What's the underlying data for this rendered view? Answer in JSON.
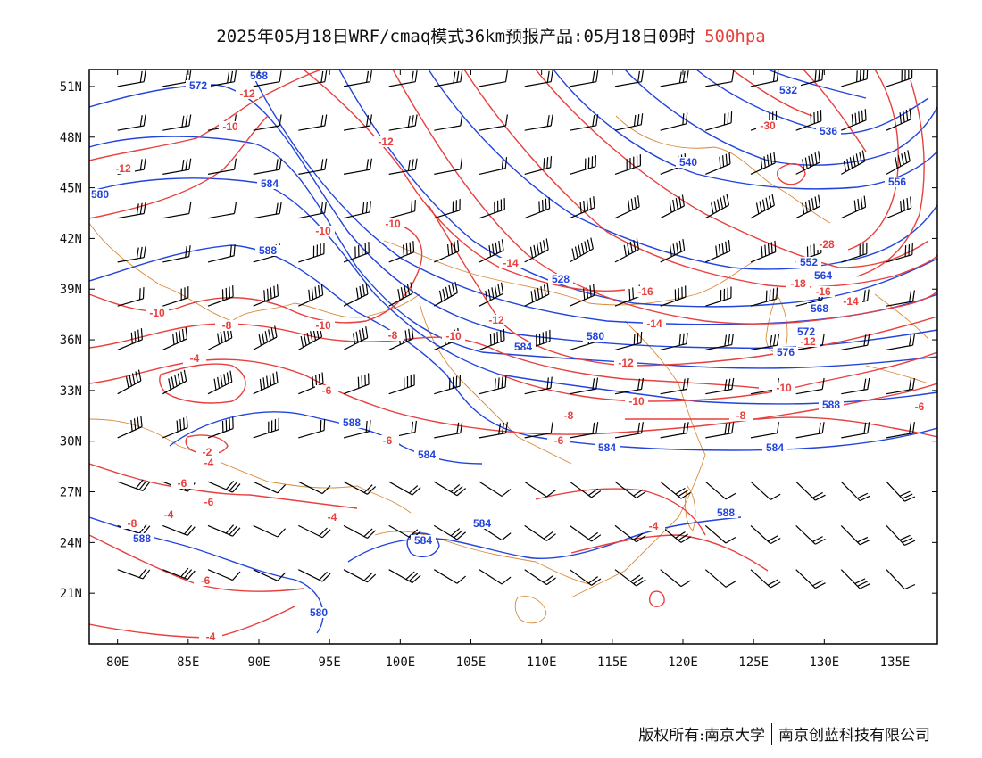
{
  "header": {
    "title_main": "2025年05月18日WRF/cmaq模式36km预报产品:05月18日09时",
    "title_level": "500hpa",
    "level_color": "#e8403e"
  },
  "map": {
    "lon_range": [
      78,
      138
    ],
    "lat_range": [
      18,
      52
    ],
    "lon_ticks": [
      "80E",
      "85E",
      "90E",
      "95E",
      "100E",
      "105E",
      "110E",
      "115E",
      "120E",
      "125E",
      "130E",
      "135E"
    ],
    "lat_ticks": [
      "21N",
      "24N",
      "27N",
      "30N",
      "33N",
      "36N",
      "39N",
      "42N",
      "45N",
      "48N",
      "51N"
    ],
    "colors": {
      "height": "#2244dd",
      "temperature": "#e8403e",
      "boundary": "#d98a3a",
      "wind": "#000000"
    },
    "height_labels": [
      "572",
      "568",
      "580",
      "584",
      "588",
      "528",
      "532",
      "536",
      "540",
      "556",
      "564",
      "568",
      "572",
      "576",
      "580",
      "584",
      "588",
      "552",
      "584",
      "588",
      "588",
      "584",
      "584",
      "580",
      "588",
      "584",
      "584"
    ],
    "temp_labels": [
      "-12",
      "-10",
      "-12",
      "-12",
      "-10",
      "-10",
      "-10",
      "-8",
      "-8",
      "-4",
      "-6",
      "-2",
      "-4",
      "-6",
      "-6",
      "-6",
      "-6",
      "-4",
      "-30",
      "-28",
      "-18",
      "-16",
      "-14",
      "-16",
      "-12",
      "-14",
      "-12",
      "-10",
      "-8",
      "-10",
      "-8",
      "-12",
      "-10",
      "-6",
      "-6",
      "-8",
      "-4",
      "-4",
      "-4",
      "-14",
      "-10"
    ]
  },
  "footer": {
    "left": "版权所有:南京大学",
    "right": "南京创蓝科技有限公司"
  }
}
